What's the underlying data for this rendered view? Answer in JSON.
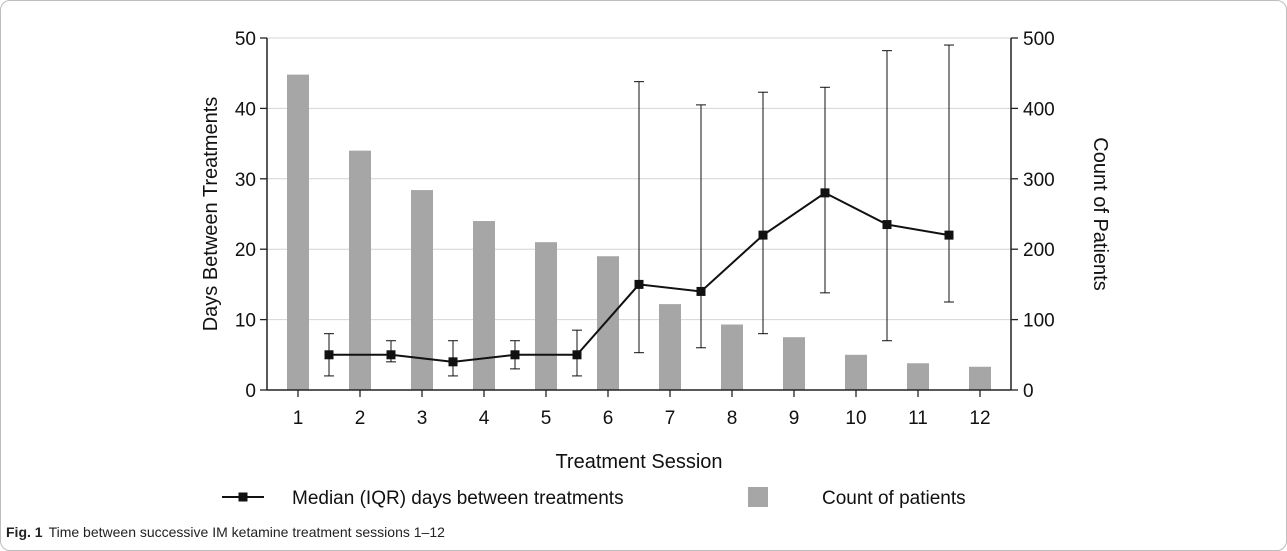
{
  "chart_data": {
    "type": "bar+line",
    "categories": [
      "1",
      "2",
      "3",
      "4",
      "5",
      "6",
      "7",
      "8",
      "9",
      "10",
      "11",
      "12"
    ],
    "xlabel": "Treatment Session",
    "ylabel_left": "Days Between Treatments",
    "ylabel_right": "Count of Patients",
    "ylim_left": [
      0,
      50
    ],
    "ylim_right": [
      0,
      500
    ],
    "yticks_left": [
      "0",
      "10",
      "20",
      "30",
      "40",
      "50"
    ],
    "yticks_right": [
      "0",
      "100",
      "200",
      "300",
      "400",
      "500"
    ],
    "grid": "horizontal",
    "bars": {
      "name": "Count of patients",
      "axis": "right",
      "color": "#a6a6a6",
      "values": [
        448,
        340,
        284,
        240,
        210,
        190,
        122,
        93,
        75,
        50,
        38,
        33
      ]
    },
    "line": {
      "name": "Median (IQR) days between treatments",
      "axis": "left",
      "color": "#111111",
      "x": [
        1.5,
        2.5,
        3.5,
        4.5,
        5.5,
        6.5,
        7.5,
        8.5,
        9.5,
        10.5,
        11.5
      ],
      "median": [
        5,
        5,
        4,
        5,
        5,
        15,
        14,
        22,
        28,
        23.5,
        22
      ],
      "q1": [
        2,
        4,
        2,
        3,
        2,
        5.3,
        6,
        8,
        13.8,
        7,
        12.5
      ],
      "q3": [
        8,
        7,
        7,
        7,
        8.5,
        43.8,
        40.5,
        42.3,
        43,
        48.2,
        49
      ]
    },
    "legend_position": "bottom"
  },
  "caption": {
    "label": "Fig. 1",
    "text": "Time between successive IM ketamine treatment sessions 1–12"
  }
}
